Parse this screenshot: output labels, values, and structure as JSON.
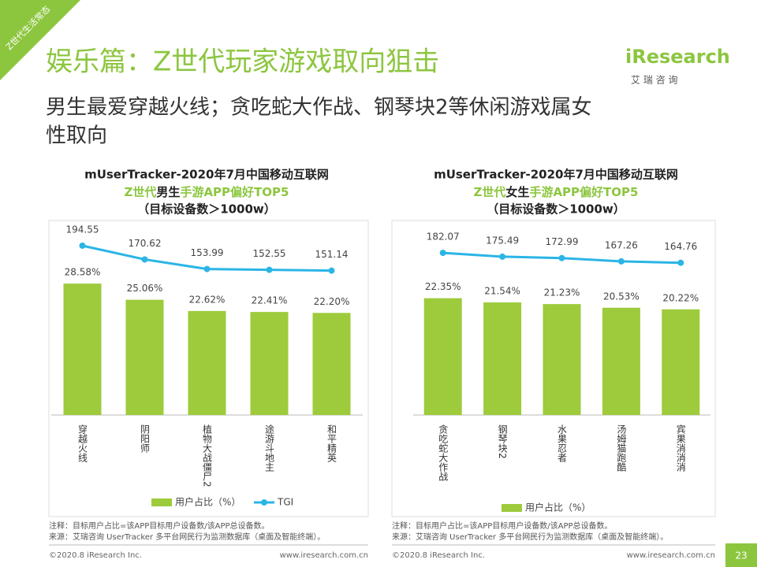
{
  "tag": "Z世代生活常态",
  "title": "娱乐篇：Z世代玩家游戏取向狙击",
  "subtitle_lines": [
    "男生最爱穿越火线；贪吃蛇大作战、钢琴块2等休闲游戏属女",
    "性取向"
  ],
  "logo": {
    "name": "iResearch",
    "sub": "艾 瑞 咨 询"
  },
  "chart_data": [
    {
      "type": "bar_line",
      "title": [
        "mUserTracker-2020年7月中国移动互联网",
        [
          {
            "text": "Z世代",
            "color": "#8cc63f"
          },
          {
            "text": "男生",
            "color": "#222222"
          },
          {
            "text": "手游APP偏好TOP5",
            "color": "#8cc63f"
          }
        ],
        "（目标设备数＞1000w）"
      ],
      "categories": [
        "穿越火线",
        "阴阳师",
        "植物大战僵尸2",
        "途游斗地主",
        "和平精英"
      ],
      "series": [
        {
          "name": "用户占比（%）",
          "type": "bar",
          "color": "#9dcb3c",
          "values": [
            28.58,
            25.06,
            22.62,
            22.41,
            22.2
          ],
          "value_labels": [
            "28.58%",
            "25.06%",
            "22.62%",
            "22.41%",
            "22.20%"
          ]
        },
        {
          "name": "TGI",
          "type": "line",
          "axis": "y2",
          "color": "#2bb5e6",
          "values": [
            194.55,
            170.62,
            153.99,
            152.55,
            151.14
          ]
        }
      ],
      "ylim": [
        0,
        50
      ],
      "y2lim": [
        -100,
        300
      ],
      "notes": [
        "注释：目标用户占比=该APP目标用户设备数/该APP总设备数。",
        "来源：艾瑞咨询 UserTracker 多平台网民行为监测数据库（桌面及智能终端）。"
      ]
    },
    {
      "type": "bar_line",
      "title": [
        "mUserTracker-2020年7月中国移动互联网",
        [
          {
            "text": "Z世代",
            "color": "#8cc63f"
          },
          {
            "text": "女生",
            "color": "#222222"
          },
          {
            "text": "手游APP偏好TOP5",
            "color": "#8cc63f"
          }
        ],
        "（目标设备数＞1000w）"
      ],
      "categories": [
        "贪吃蛇大作战",
        "钢琴块2",
        "水果忍者",
        "汤姆猫跑酷",
        "宾果消消消"
      ],
      "series": [
        {
          "name": "用户占比（%）",
          "type": "bar",
          "color": "#9dcb3c",
          "values": [
            22.35,
            21.54,
            21.23,
            20.53,
            20.22
          ],
          "value_labels": [
            "22.35%",
            "21.54%",
            "21.23%",
            "20.53%",
            "20.22%"
          ]
        },
        {
          "type": "line",
          "axis": "y2",
          "color": "#2bb5e6",
          "values": [
            182.07,
            175.49,
            172.99,
            167.26,
            164.76
          ]
        }
      ],
      "ylim": [
        0,
        44
      ],
      "y2lim": [
        -100,
        300
      ],
      "notes": [
        "注释：目标用户占比=该APP目标用户设备数/该APP总设备数。",
        "来源：艾瑞咨询 UserTracker 多平台网民行为监测数据库（桌面及智能终端）。"
      ]
    }
  ],
  "footer": [
    {
      "copyright": "©2020.8 iResearch Inc.",
      "url": "www.iresearch.com.cn"
    },
    {
      "copyright": "©2020.8 iResearch Inc.",
      "url": "www.iresearch.com.cn"
    }
  ],
  "page": "23"
}
